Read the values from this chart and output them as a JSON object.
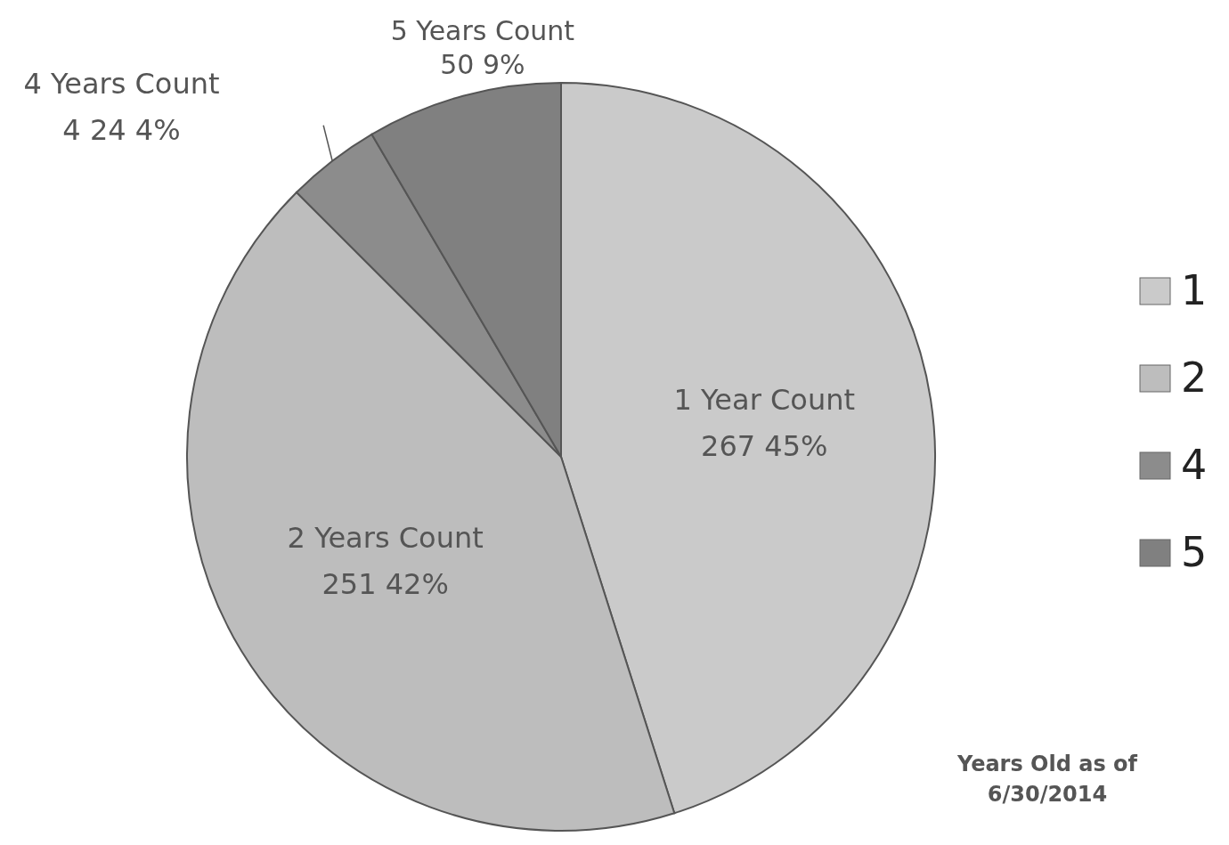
{
  "chart_data": {
    "type": "pie",
    "categories": [
      "1",
      "2",
      "4",
      "5"
    ],
    "values": [
      267,
      251,
      24,
      50
    ],
    "colors": [
      "#cacaca",
      "#bdbdbd",
      "#8c8c8c",
      "#808080"
    ],
    "value_labels": [
      "1 Year Count\n267 45%",
      "2 Years Count\n251 42%",
      "4 Years Count\n4 24 4%",
      "5 Years Count\n50 9%"
    ],
    "legend": "right",
    "annotations": [
      "Years Old as of\n6/30/2014"
    ]
  }
}
